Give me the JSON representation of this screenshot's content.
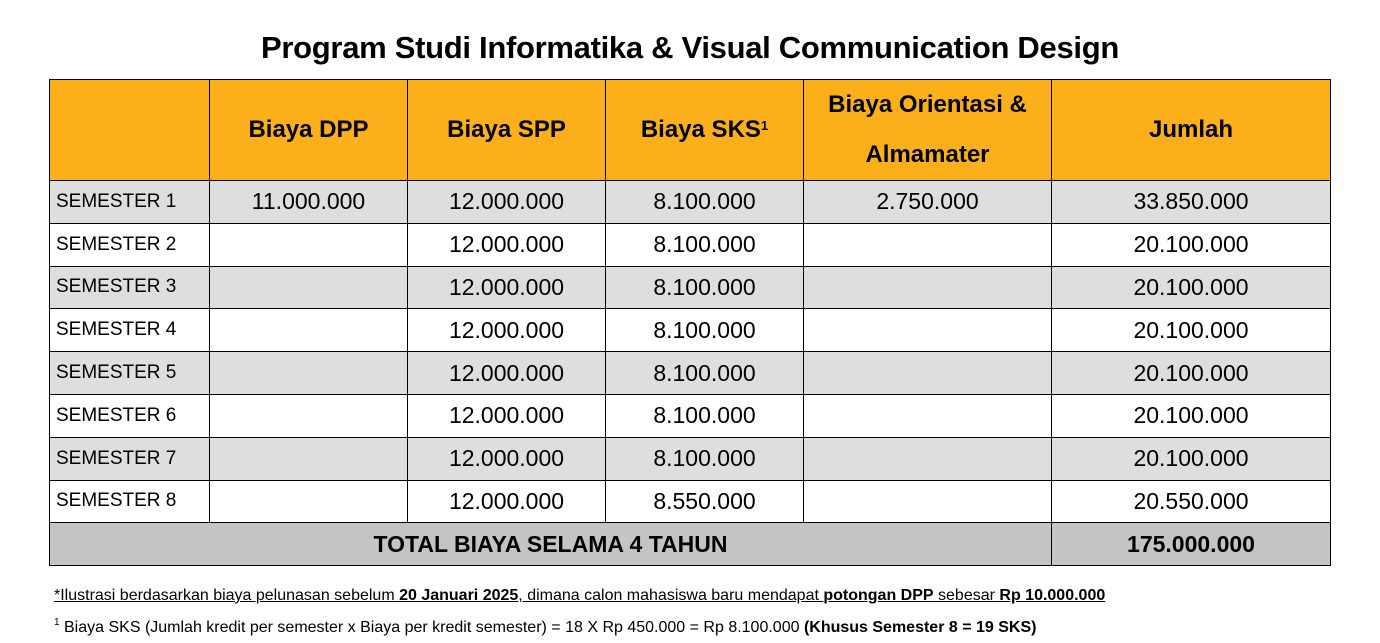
{
  "title": "Program Studi Informatika & Visual Communication Design",
  "table": {
    "headers": {
      "blank": "",
      "dpp": "Biaya DPP",
      "spp": "Biaya SPP",
      "sks": "Biaya SKS",
      "sks_sup": "1",
      "orientasi": "Biaya Orientasi & Almamater",
      "jumlah": "Jumlah"
    },
    "rows": [
      {
        "semester": "SEMESTER 1",
        "dpp": "11.000.000",
        "spp": "12.000.000",
        "sks": "8.100.000",
        "orientasi": "2.750.000",
        "jumlah": "33.850.000"
      },
      {
        "semester": "SEMESTER 2",
        "dpp": "",
        "spp": "12.000.000",
        "sks": "8.100.000",
        "orientasi": "",
        "jumlah": "20.100.000"
      },
      {
        "semester": "SEMESTER 3",
        "dpp": "",
        "spp": "12.000.000",
        "sks": "8.100.000",
        "orientasi": "",
        "jumlah": "20.100.000"
      },
      {
        "semester": "SEMESTER 4",
        "dpp": "",
        "spp": "12.000.000",
        "sks": "8.100.000",
        "orientasi": "",
        "jumlah": "20.100.000"
      },
      {
        "semester": "SEMESTER 5",
        "dpp": "",
        "spp": "12.000.000",
        "sks": "8.100.000",
        "orientasi": "",
        "jumlah": "20.100.000"
      },
      {
        "semester": "SEMESTER 6",
        "dpp": "",
        "spp": "12.000.000",
        "sks": "8.100.000",
        "orientasi": "",
        "jumlah": "20.100.000"
      },
      {
        "semester": "SEMESTER 7",
        "dpp": "",
        "spp": "12.000.000",
        "sks": "8.100.000",
        "orientasi": "",
        "jumlah": "20.100.000"
      },
      {
        "semester": "SEMESTER 8",
        "dpp": "",
        "spp": "12.000.000",
        "sks": "8.550.000",
        "orientasi": "",
        "jumlah": "20.550.000"
      }
    ],
    "total_label": "TOTAL BIAYA SELAMA 4 TAHUN",
    "total_value": "175.000.000"
  },
  "notes": {
    "note1": {
      "p1": "*Ilustrasi berdasarkan biaya pelunasan sebelum ",
      "b1": "20 Januari 2025",
      "p2": ", dimana calon mahasiswa baru mendapat ",
      "b2": "potongan DPP",
      "p3": " sebesar ",
      "b3": "Rp 10.000.000"
    },
    "note2": {
      "sup": "1",
      "p1": " Biaya SKS (Jumlah kredit per semester x Biaya per kredit semester) = 18 X Rp 450.000 = Rp 8.100.000 ",
      "b1": "(Khusus Semester 8 = 19 SKS)"
    }
  },
  "colors": {
    "header_bg": "#fbb01b",
    "row_alt_bg": "#dedede",
    "total_bg": "#c4c4c4"
  }
}
